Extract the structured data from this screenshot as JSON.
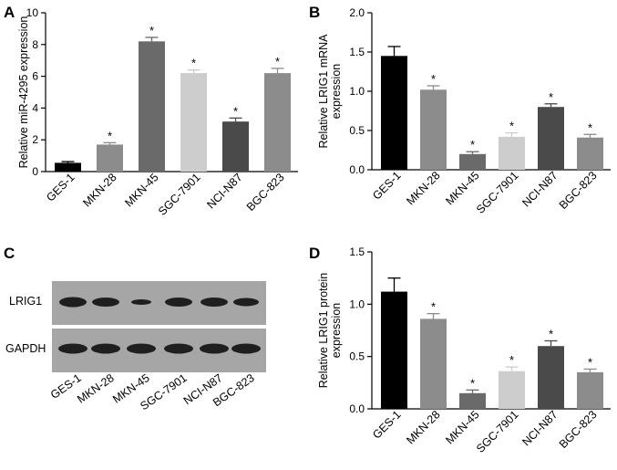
{
  "categories": [
    "GES-1",
    "MKN-28",
    "MKN-45",
    "SGC-7901",
    "NCI-N87",
    "BGC-823"
  ],
  "bar_colors": [
    "#000000",
    "#8c8c8c",
    "#6a6a6a",
    "#cdcdcd",
    "#4a4a4a",
    "#8c8c8c"
  ],
  "panels": {
    "A": {
      "letter": "A",
      "ylabel": "Relative miR-4295 expression",
      "ylim": [
        0,
        10
      ],
      "yticks": [
        {
          "v": 0,
          "label": "0"
        },
        {
          "v": 2,
          "label": "2"
        },
        {
          "v": 4,
          "label": "4"
        },
        {
          "v": 6,
          "label": "6"
        },
        {
          "v": 8,
          "label": "8"
        },
        {
          "v": 10,
          "label": "10"
        }
      ],
      "values": [
        0.55,
        1.7,
        8.2,
        6.2,
        3.15,
        6.2
      ],
      "errors": [
        0.08,
        0.12,
        0.25,
        0.2,
        0.22,
        0.3
      ],
      "sig": [
        "",
        "*",
        "*",
        "*",
        "*",
        "*"
      ]
    },
    "B": {
      "letter": "B",
      "ylabel": [
        "Relative LRIG1 mRNA",
        "expression"
      ],
      "ylim": [
        0,
        2.0
      ],
      "yticks": [
        {
          "v": 0,
          "label": "0.0"
        },
        {
          "v": 0.5,
          "label": "0.5"
        },
        {
          "v": 1.0,
          "label": "1.0"
        },
        {
          "v": 1.5,
          "label": "1.5"
        },
        {
          "v": 2.0,
          "label": "2.0"
        }
      ],
      "values": [
        1.45,
        1.02,
        0.2,
        0.42,
        0.8,
        0.41
      ],
      "errors": [
        0.12,
        0.05,
        0.03,
        0.05,
        0.04,
        0.04
      ],
      "sig": [
        "",
        "*",
        "*",
        "*",
        "*",
        "*"
      ]
    },
    "C": {
      "letter": "C",
      "bands": [
        "LRIG1",
        "GAPDH"
      ]
    },
    "D": {
      "letter": "D",
      "ylabel": [
        "Relative LRIG1 protein",
        "expression"
      ],
      "ylim": [
        0,
        1.5
      ],
      "yticks": [
        {
          "v": 0,
          "label": "0.0"
        },
        {
          "v": 0.5,
          "label": "0.5"
        },
        {
          "v": 1.0,
          "label": "1.0"
        },
        {
          "v": 1.5,
          "label": "1.5"
        }
      ],
      "values": [
        1.12,
        0.86,
        0.15,
        0.36,
        0.6,
        0.35
      ],
      "errors": [
        0.13,
        0.05,
        0.03,
        0.04,
        0.05,
        0.03
      ],
      "sig": [
        "",
        "*",
        "*",
        "*",
        "*",
        "*"
      ]
    }
  },
  "chart_data": [
    {
      "type": "bar",
      "categories": [
        "GES-1",
        "MKN-28",
        "MKN-45",
        "SGC-7901",
        "NCI-N87",
        "BGC-823"
      ],
      "values": [
        0.55,
        1.7,
        8.2,
        6.2,
        3.15,
        6.2
      ],
      "ylabel": "Relative miR-4295 expression",
      "ylim": [
        0,
        10
      ]
    },
    {
      "type": "bar",
      "categories": [
        "GES-1",
        "MKN-28",
        "MKN-45",
        "SGC-7901",
        "NCI-N87",
        "BGC-823"
      ],
      "values": [
        1.45,
        1.02,
        0.2,
        0.42,
        0.8,
        0.41
      ],
      "ylabel": "Relative LRIG1 mRNA expression",
      "ylim": [
        0,
        2.0
      ]
    },
    {
      "type": "bar",
      "categories": [
        "GES-1",
        "MKN-28",
        "MKN-45",
        "SGC-7901",
        "NCI-N87",
        "BGC-823"
      ],
      "values": [
        1.12,
        0.86,
        0.15,
        0.36,
        0.6,
        0.35
      ],
      "ylabel": "Relative LRIG1 protein expression",
      "ylim": [
        0,
        1.5
      ]
    }
  ]
}
